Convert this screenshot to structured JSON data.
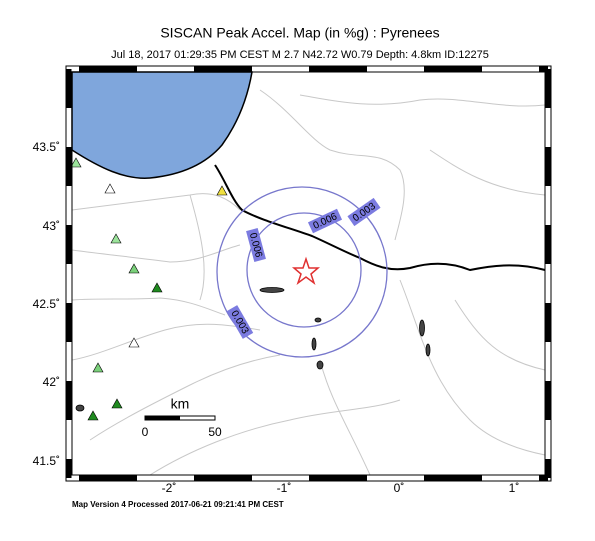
{
  "header": {
    "title": "SISCAN Peak Accel. Map (in %g) : Pyrenees",
    "subtitle": "Jul 18, 2017 01:29:35 PM CEST   M 2.7   N42.72 W0.79   Depth: 4.8km   ID:12275"
  },
  "map": {
    "lat_labels": [
      "43.5˚",
      "43˚",
      "42.5˚",
      "42˚",
      "41.5˚"
    ],
    "lon_labels": [
      "-2˚",
      "-1˚",
      "0˚",
      "1˚"
    ],
    "contour_labels": [
      "0.003",
      "0.006",
      "0.006",
      "0.003"
    ],
    "scale": {
      "unit": "km",
      "start": "0",
      "end": "50"
    }
  },
  "footer": "Map Version 4 Processed 2017-06-21 09:21:41 PM CEST"
}
